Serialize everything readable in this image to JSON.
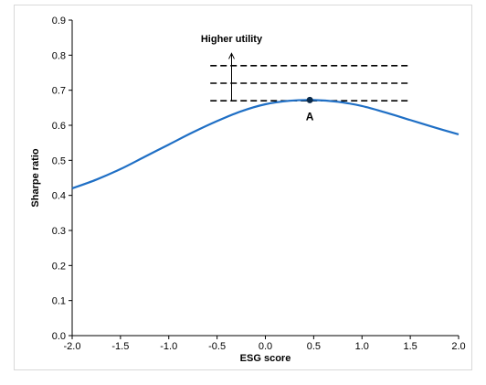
{
  "chart_data": {
    "type": "line",
    "xlabel": "ESG score",
    "ylabel": "Sharpe ratio",
    "xlim": [
      -2.0,
      2.0
    ],
    "ylim": [
      0.0,
      0.9
    ],
    "x_ticks": [
      "-2.0",
      "-1.5",
      "-1.0",
      "-0.5",
      "0.0",
      "0.5",
      "1.0",
      "1.5",
      "2.0"
    ],
    "y_ticks": [
      "0.0",
      "0.1",
      "0.2",
      "0.3",
      "0.4",
      "0.5",
      "0.6",
      "0.7",
      "0.8",
      "0.9"
    ],
    "grid": false,
    "series": [
      {
        "color": "#1f6fc5",
        "x": [
          -2.0,
          -1.75,
          -1.5,
          -1.25,
          -1.0,
          -0.75,
          -0.5,
          -0.25,
          0.0,
          0.25,
          0.5,
          0.75,
          1.0,
          1.25,
          1.5,
          1.75,
          2.0
        ],
        "y": [
          0.42,
          0.445,
          0.475,
          0.51,
          0.545,
          0.58,
          0.612,
          0.64,
          0.66,
          0.67,
          0.672,
          0.667,
          0.655,
          0.636,
          0.615,
          0.594,
          0.574
        ]
      }
    ],
    "indifference_curves": {
      "x_range": [
        -0.57,
        1.5
      ],
      "y_values": [
        0.67,
        0.72,
        0.77
      ],
      "color": "#000000"
    },
    "arrow": {
      "x": -0.35,
      "from_y": 0.67,
      "to_y": 0.805,
      "label": "Higher utility",
      "label_x": -0.35,
      "label_y": 0.838
    },
    "optimum": {
      "label": "A",
      "x": 0.46,
      "y": 0.672,
      "color": "#0a2a4a"
    }
  }
}
